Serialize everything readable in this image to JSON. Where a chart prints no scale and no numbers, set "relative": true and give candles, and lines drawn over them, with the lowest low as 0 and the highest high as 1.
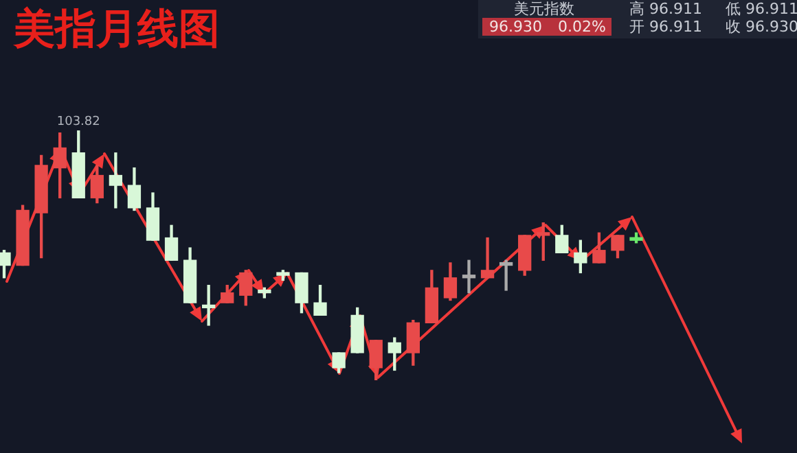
{
  "chart_data": {
    "type": "candlestick",
    "relative": true,
    "title": "美指月线图",
    "categories": [
      null,
      null,
      null,
      null,
      null,
      null,
      null,
      null,
      null,
      null,
      null,
      null,
      null,
      null,
      null,
      null,
      null,
      null,
      null,
      null,
      null,
      null,
      null,
      null,
      null,
      null,
      null,
      null,
      null,
      null,
      null,
      null,
      null,
      null,
      null
    ],
    "ohlc": [
      [
        0.51,
        0.52,
        0.41,
        0.46
      ],
      [
        0.46,
        0.7,
        0.46,
        0.68
      ],
      [
        0.67,
        0.9,
        0.49,
        0.86
      ],
      [
        0.85,
        0.99,
        0.73,
        0.93
      ],
      [
        0.91,
        1,
        0.73,
        0.73
      ],
      [
        0.73,
        0.86,
        0.71,
        0.82
      ],
      [
        0.82,
        0.91,
        0.69,
        0.78
      ],
      [
        0.78,
        0.85,
        0.68,
        0.69
      ],
      [
        0.69,
        0.75,
        0.56,
        0.56
      ],
      [
        0.57,
        0.62,
        0.48,
        0.48
      ],
      [
        0.48,
        0.53,
        0.31,
        0.31
      ],
      [
        0.3,
        0.38,
        0.22,
        0.29
      ],
      [
        0.31,
        0.38,
        0.31,
        0.35
      ],
      [
        0.34,
        0.44,
        0.3,
        0.43
      ],
      [
        0.36,
        0.37,
        0.33,
        0.35
      ],
      [
        0.43,
        0.44,
        0.4,
        0.42
      ],
      [
        0.43,
        0.43,
        0.27,
        0.31
      ],
      [
        0.31,
        0.38,
        0.26,
        0.26
      ],
      [
        0.11,
        0.11,
        0.03,
        0.05
      ],
      [
        0.26,
        0.29,
        0.11,
        0.11
      ],
      [
        0.05,
        0.16,
        0,
        0.16
      ],
      [
        0.15,
        0.17,
        0.04,
        0.11
      ],
      [
        0.11,
        0.24,
        0.06,
        0.23
      ],
      [
        0.23,
        0.44,
        0.23,
        0.37
      ],
      [
        0.33,
        0.47,
        0.32,
        0.41
      ],
      [
        0.41,
        0.48,
        0.35,
        0.42
      ],
      [
        0.41,
        0.57,
        0.41,
        0.44
      ],
      [
        0.47,
        0.48,
        0.36,
        0.46
      ],
      [
        0.44,
        0.58,
        0.42,
        0.58
      ],
      [
        0.58,
        0.63,
        0.48,
        0.59
      ],
      [
        0.58,
        0.62,
        0.51,
        0.51
      ],
      [
        0.51,
        0.56,
        0.43,
        0.47
      ],
      [
        0.47,
        0.59,
        0.47,
        0.52
      ],
      [
        0.52,
        0.58,
        0.49,
        0.58
      ],
      [
        0.57,
        0.59,
        0.55,
        0.56
      ]
    ],
    "colors": [
      "#d8f7d8",
      "#e84a4a",
      "#e84a4a",
      "#e84a4a",
      "#d8f7d8",
      "#e84a4a",
      "#d8f7d8",
      "#d8f7d8",
      "#d8f7d8",
      "#d8f7d8",
      "#d8f7d8",
      "#d8f7d8",
      "#e84a4a",
      "#e84a4a",
      "#d8f7d8",
      "#d8f7d8",
      "#d8f7d8",
      "#d8f7d8",
      "#d8f7d8",
      "#d8f7d8",
      "#e84a4a",
      "#d8f7d8",
      "#e84a4a",
      "#e84a4a",
      "#e84a4a",
      "#aaaaaa",
      "#e84a4a",
      "#aaaaaa",
      "#e84a4a",
      "#e84a4a",
      "#d8f7d8",
      "#d8f7d8",
      "#e84a4a",
      "#e84a4a",
      "#6be86b"
    ],
    "annotations": [
      {
        "text": "103.82",
        "y": 1
      },
      "美元指数",
      "96.930",
      "0.02%",
      "高 96.911",
      "低 96.911",
      "开 96.911",
      "收 96.930"
    ]
  }
}
